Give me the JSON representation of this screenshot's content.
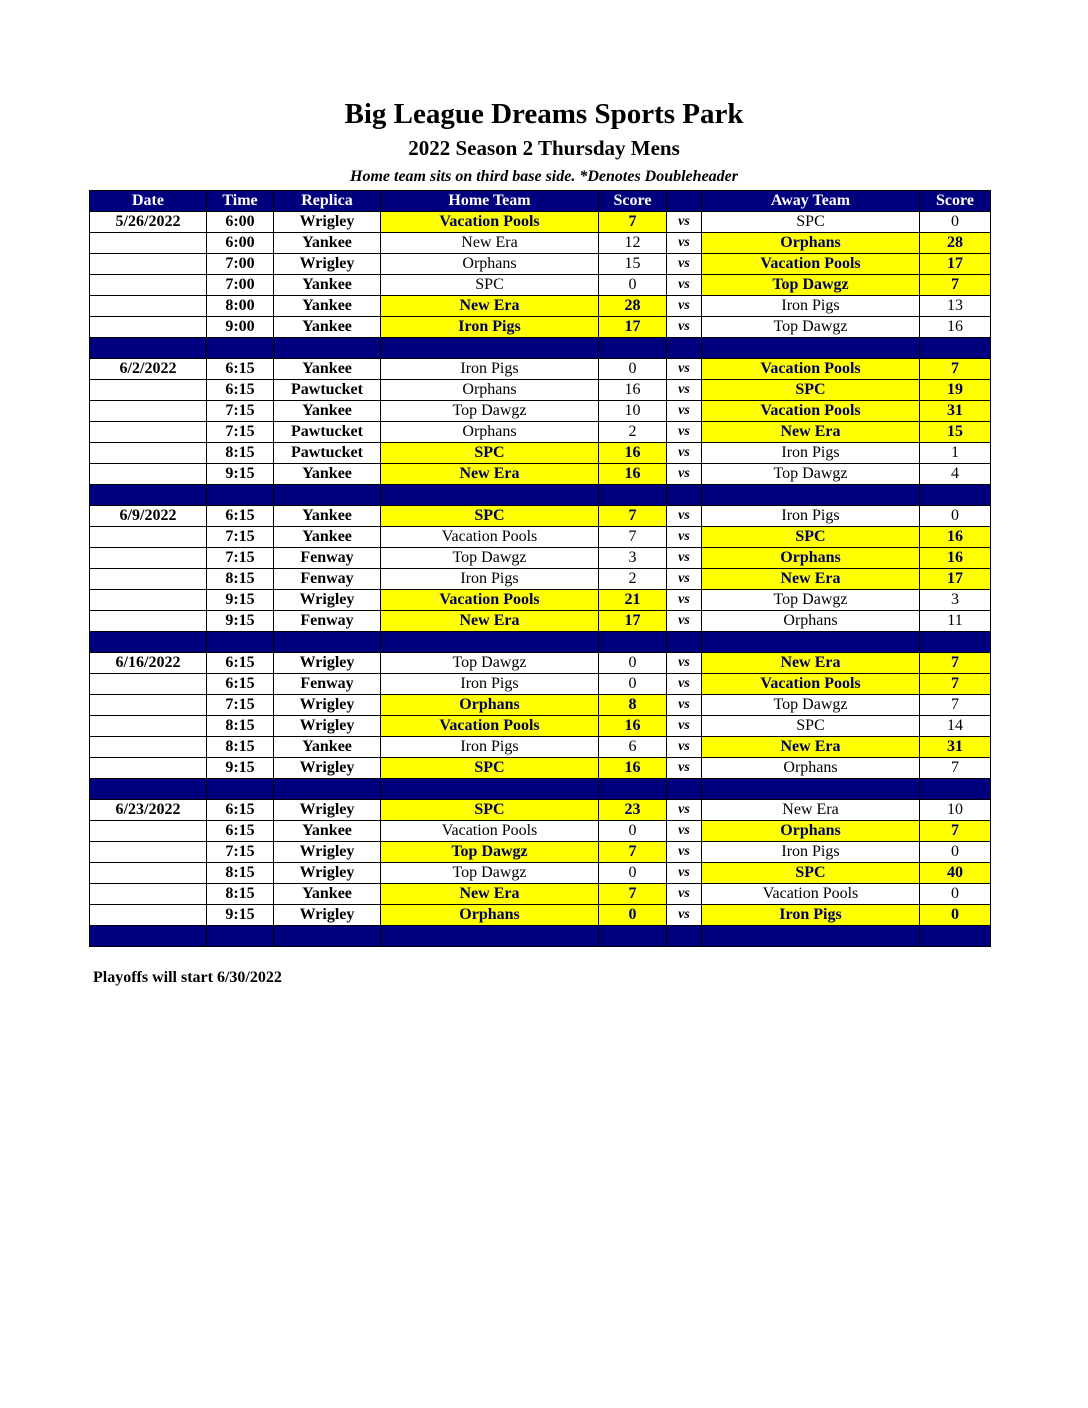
{
  "title": "Big League Dreams Sports Park",
  "subtitle": "2022 Season 2 Thursday Mens",
  "note": "Home team sits on third base side.  *Denotes Doubleheader",
  "headers": [
    "Date",
    "Time",
    "Replica",
    "Home Team",
    "Score",
    "",
    "Away Team",
    "Score"
  ],
  "vs_label": "vs",
  "colors": {
    "header": "#00007f",
    "highlight": "#ffff00"
  },
  "weeks": [
    {
      "date": "5/26/2022",
      "games": [
        [
          "6:00",
          "Wrigley",
          "Vacation Pools",
          "7",
          "SPC",
          "0",
          "home"
        ],
        [
          "6:00",
          "Yankee",
          "New Era",
          "12",
          "Orphans",
          "28",
          "away"
        ],
        [
          "7:00",
          "Wrigley",
          "Orphans",
          "15",
          "Vacation Pools",
          "17",
          "away"
        ],
        [
          "7:00",
          "Yankee",
          "SPC",
          "0",
          "Top Dawgz",
          "7",
          "away"
        ],
        [
          "8:00",
          "Yankee",
          "New Era",
          "28",
          "Iron Pigs",
          "13",
          "home"
        ],
        [
          "9:00",
          "Yankee",
          "Iron Pigs",
          "17",
          "Top Dawgz",
          "16",
          "home"
        ]
      ]
    },
    {
      "date": "6/2/2022",
      "games": [
        [
          "6:15",
          "Yankee",
          "Iron Pigs",
          "0",
          "Vacation Pools",
          "7",
          "away"
        ],
        [
          "6:15",
          "Pawtucket",
          "Orphans",
          "16",
          "SPC",
          "19",
          "away"
        ],
        [
          "7:15",
          "Yankee",
          "Top Dawgz",
          "10",
          "Vacation Pools",
          "31",
          "away"
        ],
        [
          "7:15",
          "Pawtucket",
          "Orphans",
          "2",
          "New Era",
          "15",
          "away"
        ],
        [
          "8:15",
          "Pawtucket",
          "SPC",
          "16",
          "Iron Pigs",
          "1",
          "home"
        ],
        [
          "9:15",
          "Yankee",
          "New Era",
          "16",
          "Top Dawgz",
          "4",
          "home"
        ]
      ]
    },
    {
      "date": "6/9/2022",
      "games": [
        [
          "6:15",
          "Yankee",
          "SPC",
          "7",
          "Iron Pigs",
          "0",
          "home"
        ],
        [
          "7:15",
          "Yankee",
          "Vacation Pools",
          "7",
          "SPC",
          "16",
          "away"
        ],
        [
          "7:15",
          "Fenway",
          "Top Dawgz",
          "3",
          "Orphans",
          "16",
          "away"
        ],
        [
          "8:15",
          "Fenway",
          "Iron Pigs",
          "2",
          "New Era",
          "17",
          "away"
        ],
        [
          "9:15",
          "Wrigley",
          "Vacation Pools",
          "21",
          "Top Dawgz",
          "3",
          "home"
        ],
        [
          "9:15",
          "Fenway",
          "New Era",
          "17",
          "Orphans",
          "11",
          "home"
        ]
      ]
    },
    {
      "date": "6/16/2022",
      "games": [
        [
          "6:15",
          "Wrigley",
          "Top Dawgz",
          "0",
          "New Era",
          "7",
          "away"
        ],
        [
          "6:15",
          "Fenway",
          "Iron Pigs",
          "0",
          "Vacation Pools",
          "7",
          "away"
        ],
        [
          "7:15",
          "Wrigley",
          "Orphans",
          "8",
          "Top Dawgz",
          "7",
          "home"
        ],
        [
          "8:15",
          "Wrigley",
          "Vacation Pools",
          "16",
          "SPC",
          "14",
          "home"
        ],
        [
          "8:15",
          "Yankee",
          "Iron Pigs",
          "6",
          "New Era",
          "31",
          "away"
        ],
        [
          "9:15",
          "Wrigley",
          "SPC",
          "16",
          "Orphans",
          "7",
          "home"
        ]
      ]
    },
    {
      "date": "6/23/2022",
      "games": [
        [
          "6:15",
          "Wrigley",
          "SPC",
          "23",
          "New Era",
          "10",
          "home"
        ],
        [
          "6:15",
          "Yankee",
          "Vacation Pools",
          "0",
          "Orphans",
          "7",
          "away"
        ],
        [
          "7:15",
          "Wrigley",
          "Top Dawgz",
          "7",
          "Iron Pigs",
          "0",
          "home"
        ],
        [
          "8:15",
          "Wrigley",
          "Top Dawgz",
          "0",
          "SPC",
          "40",
          "away"
        ],
        [
          "8:15",
          "Yankee",
          "New Era",
          "7",
          "Vacation Pools",
          "0",
          "home"
        ],
        [
          "9:15",
          "Wrigley",
          "Orphans",
          "0",
          "Iron Pigs",
          "0",
          "both"
        ]
      ]
    }
  ],
  "footer": "Playoffs will start 6/30/2022"
}
